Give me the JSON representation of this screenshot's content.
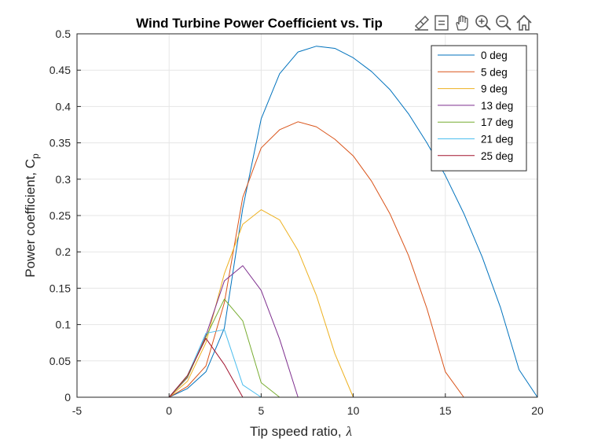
{
  "chart_data": {
    "type": "line",
    "title": "Wind Turbine Power Coefficient vs. Tip",
    "xlabel": "Tip  speed  ratio,",
    "xlabel_symbol": "λ",
    "ylabel": "Power  coefficient,  C",
    "ylabel_sub": "p",
    "xlim": [
      -5,
      20
    ],
    "ylim": [
      0,
      0.5
    ],
    "xticks": [
      -5,
      0,
      5,
      10,
      15,
      20
    ],
    "yticks": [
      0,
      0.05,
      0.1,
      0.15,
      0.2,
      0.25,
      0.3,
      0.35,
      0.4,
      0.45,
      0.5
    ],
    "xtick_labels": [
      "-5",
      "0",
      "5",
      "10",
      "15",
      "20"
    ],
    "ytick_labels": [
      "0",
      "0.05",
      "0.1",
      "0.15",
      "0.2",
      "0.25",
      "0.3",
      "0.35",
      "0.4",
      "0.45",
      "0.5"
    ],
    "grid": true,
    "legend_location": "top-right",
    "series": [
      {
        "name": "0 deg",
        "color": "#0072BD",
        "x": [
          -1,
          0,
          1,
          2,
          3,
          4,
          5,
          6,
          7,
          8,
          9,
          10,
          11,
          12,
          13,
          14,
          15,
          16,
          17,
          18,
          19,
          20
        ],
        "y": [
          0,
          0,
          0.012,
          0.035,
          0.095,
          0.26,
          0.383,
          0.445,
          0.475,
          0.483,
          0.48,
          0.467,
          0.448,
          0.423,
          0.39,
          0.35,
          0.305,
          0.253,
          0.193,
          0.123,
          0.038,
          0
        ]
      },
      {
        "name": "5 deg",
        "color": "#D95319",
        "x": [
          -1,
          0,
          1,
          2,
          3,
          4,
          5,
          6,
          7,
          8,
          9,
          10,
          11,
          12,
          13,
          14,
          15,
          16,
          17,
          18,
          19,
          20
        ],
        "y": [
          0,
          0,
          0.015,
          0.043,
          0.13,
          0.275,
          0.343,
          0.368,
          0.379,
          0.372,
          0.355,
          0.332,
          0.297,
          0.252,
          0.195,
          0.122,
          0.035,
          0,
          0,
          0,
          0,
          0
        ]
      },
      {
        "name": "9 deg",
        "color": "#EDB120",
        "x": [
          -1,
          0,
          1,
          2,
          3,
          4,
          5,
          6,
          7,
          8,
          9,
          10,
          11,
          12,
          13,
          14,
          15,
          16,
          17,
          18,
          19,
          20
        ],
        "y": [
          0,
          0,
          0.022,
          0.075,
          0.17,
          0.238,
          0.258,
          0.244,
          0.202,
          0.14,
          0.06,
          0,
          0,
          0,
          0,
          0,
          0,
          0,
          0,
          0,
          0,
          0
        ]
      },
      {
        "name": "13 deg",
        "color": "#7E2F8E",
        "x": [
          -1,
          0,
          1,
          2,
          3,
          4,
          5,
          6,
          7,
          8,
          9,
          10,
          11,
          12,
          13,
          14,
          15,
          16,
          17,
          18,
          19,
          20
        ],
        "y": [
          0,
          0,
          0.027,
          0.085,
          0.16,
          0.181,
          0.147,
          0.08,
          0,
          0,
          0,
          0,
          0,
          0,
          0,
          0,
          0,
          0,
          0,
          0,
          0,
          0
        ]
      },
      {
        "name": "17 deg",
        "color": "#77AC30",
        "x": [
          -1,
          0,
          1,
          2,
          3,
          4,
          5,
          6,
          7,
          8,
          9,
          10,
          11,
          12,
          13,
          14,
          15,
          16,
          17,
          18,
          19,
          20
        ],
        "y": [
          0,
          0,
          0.028,
          0.083,
          0.135,
          0.105,
          0.02,
          0,
          0,
          0,
          0,
          0,
          0,
          0,
          0,
          0,
          0,
          0,
          0,
          0,
          0,
          0
        ]
      },
      {
        "name": "21 deg",
        "color": "#4DBEEE",
        "x": [
          -1,
          0,
          1,
          2,
          3,
          4,
          5,
          6,
          7,
          8,
          9,
          10,
          11,
          12,
          13,
          14,
          15,
          16,
          17,
          18,
          19,
          20
        ],
        "y": [
          0,
          0,
          0.03,
          0.088,
          0.093,
          0.017,
          0,
          0,
          0,
          0,
          0,
          0,
          0,
          0,
          0,
          0,
          0,
          0,
          0,
          0,
          0,
          0
        ]
      },
      {
        "name": "25 deg",
        "color": "#A2142F",
        "x": [
          -1,
          0,
          1,
          2,
          3,
          4,
          5,
          6,
          7,
          8,
          9,
          10,
          11,
          12,
          13,
          14,
          15,
          16,
          17,
          18,
          19,
          20
        ],
        "y": [
          0,
          0,
          0.03,
          0.081,
          0.045,
          0,
          0,
          0,
          0,
          0,
          0,
          0,
          0,
          0,
          0,
          0,
          0,
          0,
          0,
          0,
          0,
          0
        ]
      }
    ]
  },
  "toolbar": {
    "icons": [
      "brush-icon",
      "datatip-icon",
      "pan-hand-icon",
      "zoom-in-icon",
      "zoom-out-icon",
      "home-icon"
    ]
  }
}
